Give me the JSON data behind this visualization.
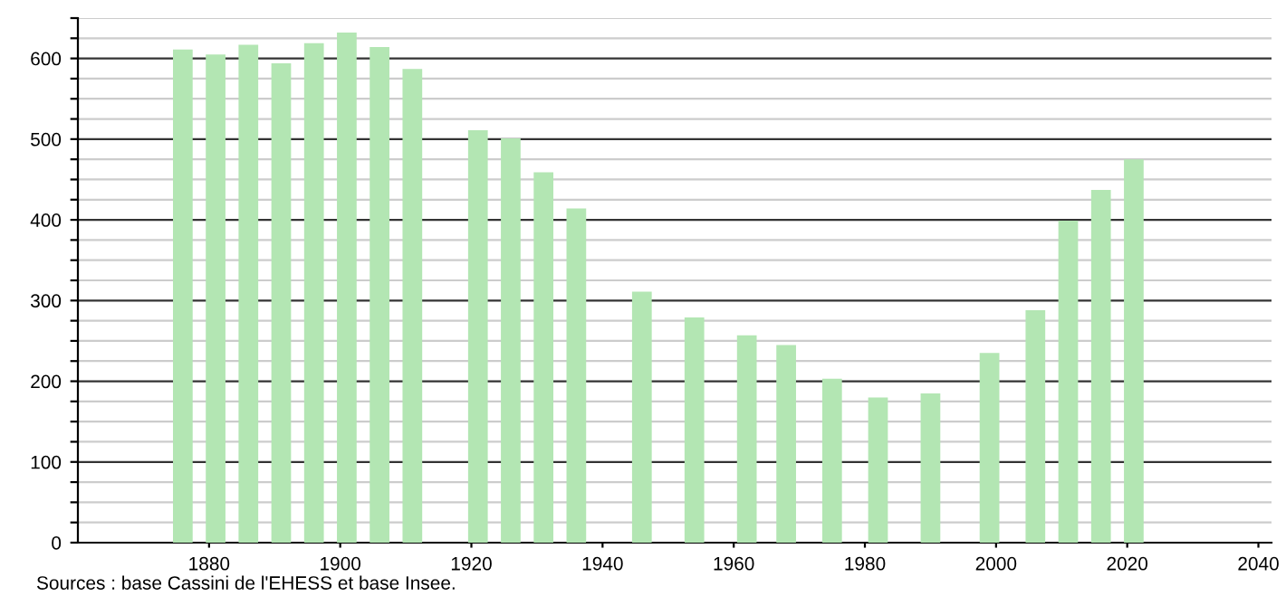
{
  "chart_data": {
    "type": "bar",
    "x": [
      1876,
      1881,
      1886,
      1891,
      1896,
      1901,
      1906,
      1911,
      1921,
      1926,
      1931,
      1936,
      1946,
      1954,
      1962,
      1968,
      1975,
      1982,
      1990,
      1999,
      2006,
      2011,
      2016,
      2021
    ],
    "values": [
      611,
      605,
      617,
      594,
      619,
      632,
      614,
      587,
      511,
      501,
      459,
      414,
      311,
      279,
      257,
      245,
      203,
      180,
      185,
      235,
      288,
      399,
      437,
      475
    ],
    "color": "#b3e6b3",
    "xlim": [
      1860,
      2042
    ],
    "ylim": [
      0,
      650
    ],
    "xticks": [
      1880,
      1900,
      1920,
      1940,
      1960,
      1980,
      2000,
      2020,
      2040
    ],
    "yticks": [
      0,
      {
        "value": 25,
        "label": null
      },
      {
        "value": 50,
        "label": null
      },
      {
        "value": 75,
        "label": null
      },
      100,
      {
        "value": 125,
        "label": null
      },
      {
        "value": 150,
        "label": null
      },
      {
        "value": 175,
        "label": null
      },
      200,
      {
        "value": 225,
        "label": null
      },
      {
        "value": 250,
        "label": null
      },
      {
        "value": 275,
        "label": null
      },
      300,
      {
        "value": 325,
        "label": null
      },
      {
        "value": 350,
        "label": null
      },
      {
        "value": 375,
        "label": null
      },
      400,
      {
        "value": 425,
        "label": null
      },
      {
        "value": 450,
        "label": null
      },
      {
        "value": 475,
        "label": null
      },
      500,
      {
        "value": 525,
        "label": null
      },
      {
        "value": 550,
        "label": null
      },
      {
        "value": 575,
        "label": null
      },
      600,
      {
        "value": 625,
        "label": null
      },
      {
        "value": 650,
        "label": null
      }
    ],
    "grid": "y",
    "annotations": [
      "Sources : base Cassini de l'EHESS et base Insee."
    ]
  }
}
